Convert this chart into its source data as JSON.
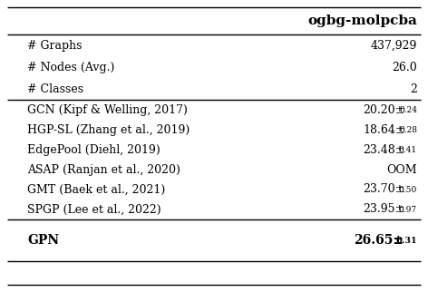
{
  "title_col": "ogbg-molpcba",
  "header_rows": [
    {
      "label": "# Graphs",
      "value": "437,929"
    },
    {
      "label": "# Nodes (Avg.)",
      "value": "26.0"
    },
    {
      "label": "# Classes",
      "value": "2"
    }
  ],
  "method_rows": [
    {
      "label": "GCN (Kipf & Welling, 2017)",
      "main": "20.20",
      "std": "0.24",
      "oom": false
    },
    {
      "label": "HGP-SL (Zhang et al., 2019)",
      "main": "18.64",
      "std": "0.28",
      "oom": false
    },
    {
      "label": "EdgePool (Diehl, 2019)",
      "main": "23.48",
      "std": "0.41",
      "oom": false
    },
    {
      "label": "ASAP (Ranjan et al., 2020)",
      "main": "OOM",
      "std": "",
      "oom": true
    },
    {
      "label": "GMT (Baek et al., 2021)",
      "main": "23.70",
      "std": "0.50",
      "oom": false
    },
    {
      "label": "SPGP (Lee et al., 2022)",
      "main": "23.95",
      "std": "0.97",
      "oom": false
    }
  ],
  "gpn_row": {
    "label": "GPN",
    "main": "26.65",
    "std": "0.31"
  },
  "bg_color": "#ffffff",
  "text_color": "#000000",
  "line_color": "#000000",
  "fs_title": 11,
  "fs_data": 9,
  "fs_std": 6.5
}
